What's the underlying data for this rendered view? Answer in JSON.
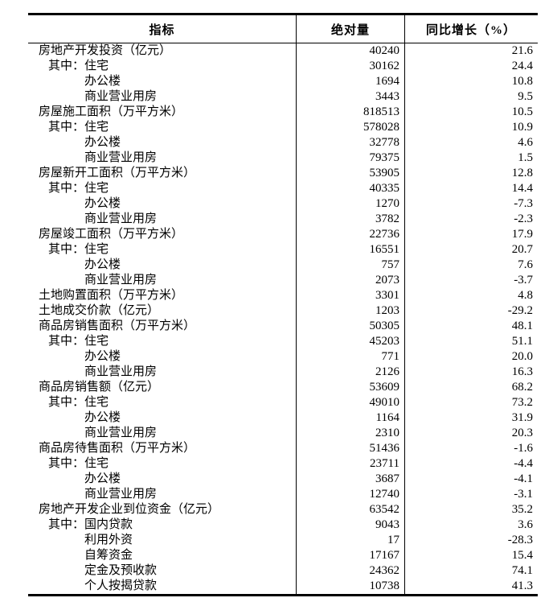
{
  "page": {
    "background_color": "#ffffff",
    "text_color": "#000000",
    "rule_color": "#000000"
  },
  "table": {
    "columns": [
      {
        "key": "indicator",
        "label": "指标"
      },
      {
        "key": "absolute",
        "label": "绝对量"
      },
      {
        "key": "growth",
        "label": "同比增长（%）"
      }
    ],
    "rows": [
      {
        "indicator": "房地产开发投资（亿元）",
        "indent": 0,
        "absolute": "40240",
        "growth": "21.6"
      },
      {
        "indicator": "其中：住宅",
        "indent": 1,
        "absolute": "30162",
        "growth": "24.4"
      },
      {
        "indicator": "办公楼",
        "indent": 2,
        "absolute": "1694",
        "growth": "10.8"
      },
      {
        "indicator": "商业营业用房",
        "indent": 2,
        "absolute": "3443",
        "growth": "9.5"
      },
      {
        "indicator": "房屋施工面积（万平方米）",
        "indent": 0,
        "absolute": "818513",
        "growth": "10.5"
      },
      {
        "indicator": "其中：住宅",
        "indent": 1,
        "absolute": "578028",
        "growth": "10.9"
      },
      {
        "indicator": "办公楼",
        "indent": 2,
        "absolute": "32778",
        "growth": "4.6"
      },
      {
        "indicator": "商业营业用房",
        "indent": 2,
        "absolute": "79375",
        "growth": "1.5"
      },
      {
        "indicator": "房屋新开工面积（万平方米）",
        "indent": 0,
        "absolute": "53905",
        "growth": "12.8"
      },
      {
        "indicator": "其中：住宅",
        "indent": 1,
        "absolute": "40335",
        "growth": "14.4"
      },
      {
        "indicator": "办公楼",
        "indent": 2,
        "absolute": "1270",
        "growth": "-7.3"
      },
      {
        "indicator": "商业营业用房",
        "indent": 2,
        "absolute": "3782",
        "growth": "-2.3"
      },
      {
        "indicator": "房屋竣工面积（万平方米）",
        "indent": 0,
        "absolute": "22736",
        "growth": "17.9"
      },
      {
        "indicator": "其中：住宅",
        "indent": 1,
        "absolute": "16551",
        "growth": "20.7"
      },
      {
        "indicator": "办公楼",
        "indent": 2,
        "absolute": "757",
        "growth": "7.6"
      },
      {
        "indicator": "商业营业用房",
        "indent": 2,
        "absolute": "2073",
        "growth": "-3.7"
      },
      {
        "indicator": "土地购置面积（万平方米）",
        "indent": 0,
        "absolute": "3301",
        "growth": "4.8"
      },
      {
        "indicator": "土地成交价款（亿元）",
        "indent": 0,
        "absolute": "1203",
        "growth": "-29.2"
      },
      {
        "indicator": "商品房销售面积（万平方米）",
        "indent": 0,
        "absolute": "50305",
        "growth": "48.1"
      },
      {
        "indicator": "其中：住宅",
        "indent": 1,
        "absolute": "45203",
        "growth": "51.1"
      },
      {
        "indicator": "办公楼",
        "indent": 2,
        "absolute": "771",
        "growth": "20.0"
      },
      {
        "indicator": "商业营业用房",
        "indent": 2,
        "absolute": "2126",
        "growth": "16.3"
      },
      {
        "indicator": "商品房销售额（亿元）",
        "indent": 0,
        "absolute": "53609",
        "growth": "68.2"
      },
      {
        "indicator": "其中：住宅",
        "indent": 1,
        "absolute": "49010",
        "growth": "73.2"
      },
      {
        "indicator": "办公楼",
        "indent": 2,
        "absolute": "1164",
        "growth": "31.9"
      },
      {
        "indicator": "商业营业用房",
        "indent": 2,
        "absolute": "2310",
        "growth": "20.3"
      },
      {
        "indicator": "商品房待售面积（万平方米）",
        "indent": 0,
        "absolute": "51436",
        "growth": "-1.6"
      },
      {
        "indicator": "其中：住宅",
        "indent": 1,
        "absolute": "23711",
        "growth": "-4.4"
      },
      {
        "indicator": "办公楼",
        "indent": 2,
        "absolute": "3687",
        "growth": "-4.1"
      },
      {
        "indicator": "商业营业用房",
        "indent": 2,
        "absolute": "12740",
        "growth": "-3.1"
      },
      {
        "indicator": "房地产开发企业到位资金（亿元）",
        "indent": 0,
        "absolute": "63542",
        "growth": "35.2"
      },
      {
        "indicator": "其中：国内贷款",
        "indent": 1,
        "absolute": "9043",
        "growth": "3.6"
      },
      {
        "indicator": "利用外资",
        "indent": 2,
        "absolute": "17",
        "growth": "-28.3"
      },
      {
        "indicator": "自筹资金",
        "indent": 2,
        "absolute": "17167",
        "growth": "15.4"
      },
      {
        "indicator": "定金及预收款",
        "indent": 2,
        "absolute": "24362",
        "growth": "74.1"
      },
      {
        "indicator": "个人按揭贷款",
        "indent": 2,
        "absolute": "10738",
        "growth": "41.3"
      }
    ]
  }
}
